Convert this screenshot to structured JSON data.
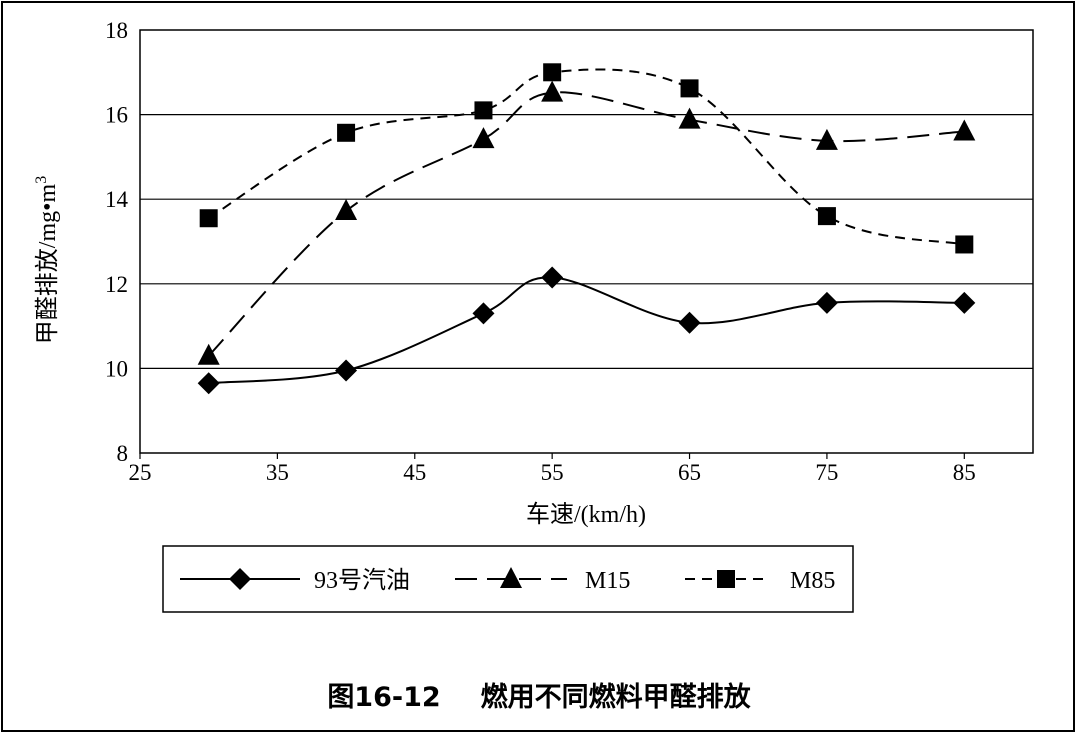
{
  "caption": {
    "prefix": "图16-12",
    "title": "燃用不同燃料甲醛排放"
  },
  "legend": {
    "items": [
      "93号汽油",
      "M15",
      "M85"
    ]
  },
  "chart_data": {
    "type": "line",
    "title": "",
    "xlabel": "车速/(km/h)",
    "ylabel": "甲醛排放/mg•m",
    "ylabel_sup": "3",
    "xlim": [
      25,
      90
    ],
    "ylim": [
      8,
      18
    ],
    "x_ticks": [
      25,
      35,
      45,
      55,
      65,
      75,
      85
    ],
    "y_ticks": [
      8,
      10,
      12,
      14,
      16,
      18
    ],
    "grid": "horizontal",
    "legend_position": "bottom",
    "x": [
      30,
      40,
      50,
      55,
      65,
      75,
      85
    ],
    "series": [
      {
        "name": "93号汽油",
        "marker": "diamond",
        "dash": "solid",
        "values": [
          9.65,
          9.95,
          11.3,
          12.15,
          11.08,
          11.55,
          11.55
        ]
      },
      {
        "name": "M15",
        "marker": "triangle",
        "dash": "long-dash",
        "values": [
          10.3,
          13.72,
          15.42,
          16.52,
          15.88,
          15.38,
          15.6
        ]
      },
      {
        "name": "M85",
        "marker": "square",
        "dash": "short-dash",
        "values": [
          13.55,
          15.57,
          16.1,
          17.0,
          16.62,
          13.6,
          12.93
        ]
      }
    ]
  }
}
